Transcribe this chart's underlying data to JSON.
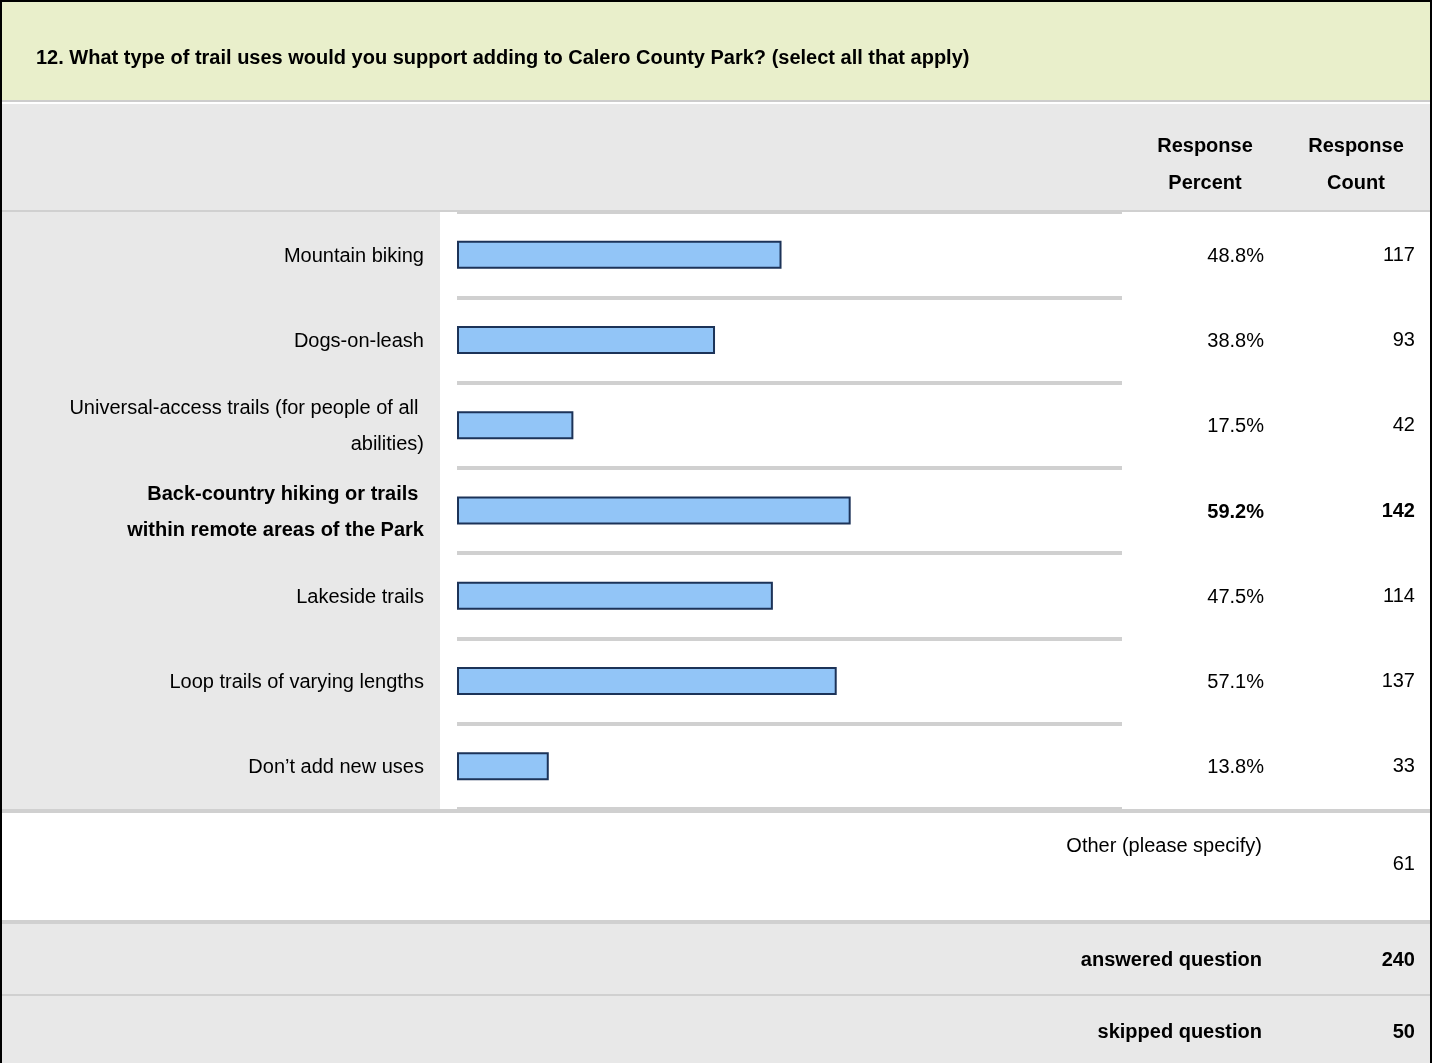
{
  "chart_data": {
    "type": "bar",
    "orientation": "horizontal",
    "title": "12. What type of trail uses would you support adding to Calero County Park? (select all that apply)",
    "categories": [
      "Mountain biking",
      "Dogs-on-leash",
      "Universal-access trails (for people of all abilities)",
      "Back-country hiking or trails within remote areas of the Park",
      "Lakeside trails",
      "Loop trails of varying lengths",
      "Don’t add new uses"
    ],
    "values": [
      48.8,
      38.8,
      17.5,
      59.2,
      47.5,
      57.1,
      13.8
    ],
    "color": "#92c5f7",
    "value_labels": [
      "48.8%",
      "38.8%",
      "17.5%",
      "59.2%",
      "47.5%",
      "57.1%",
      "13.8%"
    ],
    "xlim": [
      0,
      100
    ],
    "tick_labels": "y",
    "grid": "y",
    "annotations": [
      "Response Percent",
      "Response Count",
      "117",
      "93",
      "42",
      "142",
      "114",
      "137",
      "33",
      "Other (please specify)",
      "61",
      "answered question",
      "240",
      "skipped question",
      "50"
    ]
  }
}
